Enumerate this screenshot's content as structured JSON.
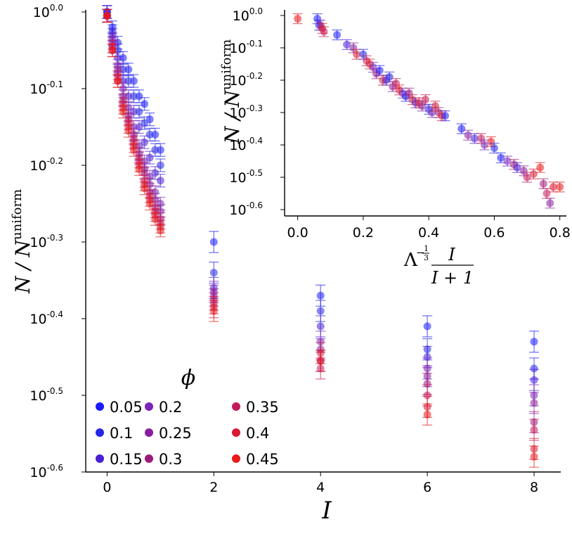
{
  "chart_data": [
    {
      "type": "scatter",
      "panel": "main",
      "xlabel": "I",
      "ylabel": "N / N^uniform",
      "ylabel_base": "N / N",
      "ylabel_sup": "uniform",
      "y_scale": "log10",
      "xlim": [
        -0.4,
        8.5
      ],
      "ylim_log10": [
        -0.6,
        0.0
      ],
      "x_ticks": [
        "0",
        "2",
        "4",
        "6",
        "8"
      ],
      "y_ticks": [
        {
          "base": "10",
          "exp": "0.0"
        },
        {
          "base": "10",
          "exp": "-0.1"
        },
        {
          "base": "10",
          "exp": "-0.2"
        },
        {
          "base": "10",
          "exp": "-0.3"
        },
        {
          "base": "10",
          "exp": "-0.4"
        },
        {
          "base": "10",
          "exp": "-0.5"
        },
        {
          "base": "10",
          "exp": "-0.6"
        }
      ],
      "error_bars": true,
      "x": [
        0,
        0.1,
        0.2,
        0.3,
        0.4,
        0.5,
        0.6,
        0.7,
        0.8,
        0.9,
        1.0,
        2,
        4,
        6,
        8
      ],
      "series": [
        {
          "name": "0.05",
          "color": "#1a1aff",
          "log10_values": [
            0.0,
            -0.02,
            -0.04,
            -0.06,
            -0.075,
            -0.09,
            -0.11,
            -0.12,
            -0.14,
            -0.16,
            -0.18,
            -0.3,
            -0.37,
            -0.41,
            -0.43
          ]
        },
        {
          "name": "0.1",
          "color": "#2626e6",
          "log10_values": [
            0.0,
            -0.025,
            -0.05,
            -0.075,
            -0.09,
            -0.11,
            -0.13,
            -0.145,
            -0.16,
            -0.18,
            -0.2,
            -0.34,
            -0.39,
            -0.44,
            -0.465
          ]
        },
        {
          "name": "0.15",
          "color": "#4a1fd6",
          "log10_values": [
            0.0,
            -0.03,
            -0.06,
            -0.09,
            -0.11,
            -0.13,
            -0.15,
            -0.17,
            -0.19,
            -0.21,
            -0.22,
            -0.36,
            -0.41,
            -0.45,
            -0.48
          ]
        },
        {
          "name": "0.2",
          "color": "#7a24b8",
          "log10_values": [
            -0.005,
            -0.035,
            -0.07,
            -0.1,
            -0.125,
            -0.15,
            -0.175,
            -0.195,
            -0.215,
            -0.235,
            -0.25,
            -0.365,
            -0.43,
            -0.465,
            -0.5
          ]
        },
        {
          "name": "0.25",
          "color": "#8a1f9e",
          "log10_values": [
            -0.005,
            -0.04,
            -0.075,
            -0.11,
            -0.135,
            -0.16,
            -0.185,
            -0.205,
            -0.225,
            -0.245,
            -0.26,
            -0.37,
            -0.44,
            -0.475,
            -0.51
          ]
        },
        {
          "name": "0.3",
          "color": "#9e1a7a",
          "log10_values": [
            -0.005,
            -0.045,
            -0.08,
            -0.115,
            -0.14,
            -0.165,
            -0.19,
            -0.21,
            -0.235,
            -0.255,
            -0.27,
            -0.375,
            -0.455,
            -0.485,
            -0.535
          ]
        },
        {
          "name": "0.35",
          "color": "#c41a5c",
          "log10_values": [
            -0.005,
            -0.045,
            -0.085,
            -0.12,
            -0.145,
            -0.17,
            -0.195,
            -0.22,
            -0.24,
            -0.26,
            -0.275,
            -0.38,
            -0.465,
            -0.5,
            -0.545
          ]
        },
        {
          "name": "0.4",
          "color": "#d61a33",
          "log10_values": [
            -0.005,
            -0.05,
            -0.09,
            -0.125,
            -0.15,
            -0.175,
            -0.2,
            -0.225,
            -0.245,
            -0.265,
            -0.28,
            -0.385,
            -0.445,
            -0.515,
            -0.57
          ]
        },
        {
          "name": "0.45",
          "color": "#e81a1a",
          "log10_values": [
            -0.005,
            -0.05,
            -0.09,
            -0.13,
            -0.155,
            -0.18,
            -0.205,
            -0.23,
            -0.25,
            -0.27,
            -0.285,
            -0.39,
            -0.455,
            -0.525,
            -0.58
          ]
        }
      ]
    },
    {
      "type": "scatter",
      "panel": "inset",
      "xlabel": "Λ^(−1/3) · I / (I+1)",
      "xlabel_lambda": "Λ",
      "xlabel_exp_sign": "−",
      "xlabel_exp_num": "1",
      "xlabel_exp_den": "3",
      "xlabel_frac_num": "I",
      "xlabel_frac_den": "I + 1",
      "ylabel": "N / N^uniform",
      "ylabel_base": "N / N",
      "ylabel_sup": "uniform",
      "y_scale": "log10",
      "xlim": [
        -0.04,
        0.82
      ],
      "ylim_log10": [
        -0.6,
        0.0
      ],
      "x_ticks": [
        "0.0",
        "0.2",
        "0.4",
        "0.6",
        "0.8"
      ],
      "y_ticks": [
        {
          "base": "10",
          "exp": "0.0"
        },
        {
          "base": "10",
          "exp": "-0.1"
        },
        {
          "base": "10",
          "exp": "-0.2"
        },
        {
          "base": "10",
          "exp": "-0.3"
        },
        {
          "base": "10",
          "exp": "-0.4"
        },
        {
          "base": "10",
          "exp": "-0.5"
        },
        {
          "base": "10",
          "exp": "-0.6"
        }
      ],
      "error_bars": true,
      "points": [
        {
          "x": 0.0,
          "y": -0.01,
          "s": 8
        },
        {
          "x": 0.06,
          "y": -0.01,
          "s": 0
        },
        {
          "x": 0.065,
          "y": -0.03,
          "s": 1
        },
        {
          "x": 0.07,
          "y": -0.03,
          "s": 3
        },
        {
          "x": 0.075,
          "y": -0.04,
          "s": 8
        },
        {
          "x": 0.08,
          "y": -0.05,
          "s": 6
        },
        {
          "x": 0.12,
          "y": -0.06,
          "s": 0
        },
        {
          "x": 0.15,
          "y": -0.09,
          "s": 2
        },
        {
          "x": 0.17,
          "y": -0.1,
          "s": 4
        },
        {
          "x": 0.18,
          "y": -0.12,
          "s": 7
        },
        {
          "x": 0.2,
          "y": -0.12,
          "s": 1
        },
        {
          "x": 0.21,
          "y": -0.14,
          "s": 6
        },
        {
          "x": 0.22,
          "y": -0.15,
          "s": 8
        },
        {
          "x": 0.23,
          "y": -0.16,
          "s": 3
        },
        {
          "x": 0.24,
          "y": -0.18,
          "s": 5
        },
        {
          "x": 0.25,
          "y": -0.17,
          "s": 0
        },
        {
          "x": 0.26,
          "y": -0.2,
          "s": 7
        },
        {
          "x": 0.27,
          "y": -0.2,
          "s": 2
        },
        {
          "x": 0.28,
          "y": -0.19,
          "s": 1
        },
        {
          "x": 0.29,
          "y": -0.22,
          "s": 4
        },
        {
          "x": 0.3,
          "y": -0.21,
          "s": 6
        },
        {
          "x": 0.31,
          "y": -0.23,
          "s": 8
        },
        {
          "x": 0.32,
          "y": -0.24,
          "s": 3
        },
        {
          "x": 0.33,
          "y": -0.25,
          "s": 0
        },
        {
          "x": 0.34,
          "y": -0.24,
          "s": 5
        },
        {
          "x": 0.35,
          "y": -0.26,
          "s": 7
        },
        {
          "x": 0.36,
          "y": -0.27,
          "s": 2
        },
        {
          "x": 0.37,
          "y": -0.27,
          "s": 8
        },
        {
          "x": 0.38,
          "y": -0.28,
          "s": 4
        },
        {
          "x": 0.39,
          "y": -0.26,
          "s": 6
        },
        {
          "x": 0.4,
          "y": -0.29,
          "s": 1
        },
        {
          "x": 0.41,
          "y": -0.3,
          "s": 3
        },
        {
          "x": 0.42,
          "y": -0.28,
          "s": 7
        },
        {
          "x": 0.43,
          "y": -0.3,
          "s": 5
        },
        {
          "x": 0.44,
          "y": -0.31,
          "s": 8
        },
        {
          "x": 0.45,
          "y": -0.31,
          "s": 0
        },
        {
          "x": 0.5,
          "y": -0.35,
          "s": 0
        },
        {
          "x": 0.52,
          "y": -0.37,
          "s": 4
        },
        {
          "x": 0.54,
          "y": -0.38,
          "s": 2
        },
        {
          "x": 0.56,
          "y": -0.38,
          "s": 6
        },
        {
          "x": 0.57,
          "y": -0.4,
          "s": 3
        },
        {
          "x": 0.59,
          "y": -0.39,
          "s": 8
        },
        {
          "x": 0.6,
          "y": -0.41,
          "s": 1
        },
        {
          "x": 0.62,
          "y": -0.44,
          "s": 0
        },
        {
          "x": 0.64,
          "y": -0.45,
          "s": 3
        },
        {
          "x": 0.66,
          "y": -0.46,
          "s": 5
        },
        {
          "x": 0.67,
          "y": -0.47,
          "s": 2
        },
        {
          "x": 0.69,
          "y": -0.48,
          "s": 4
        },
        {
          "x": 0.7,
          "y": -0.5,
          "s": 6
        },
        {
          "x": 0.72,
          "y": -0.49,
          "s": 7
        },
        {
          "x": 0.74,
          "y": -0.47,
          "s": 8
        },
        {
          "x": 0.75,
          "y": -0.52,
          "s": 5
        },
        {
          "x": 0.76,
          "y": -0.55,
          "s": 6
        },
        {
          "x": 0.77,
          "y": -0.58,
          "s": 4
        },
        {
          "x": 0.78,
          "y": -0.53,
          "s": 7
        },
        {
          "x": 0.8,
          "y": -0.53,
          "s": 8
        }
      ]
    }
  ],
  "legend": {
    "title": "ϕ",
    "placement": "bottom-left",
    "entries": [
      {
        "label": "0.05",
        "color": "#1a1aff"
      },
      {
        "label": "0.1",
        "color": "#2626e6"
      },
      {
        "label": "0.15",
        "color": "#4a1fd6"
      },
      {
        "label": "0.2",
        "color": "#7a24b8"
      },
      {
        "label": "0.25",
        "color": "#8a1f9e"
      },
      {
        "label": "0.3",
        "color": "#9e1a7a"
      },
      {
        "label": "0.35",
        "color": "#c41a5c"
      },
      {
        "label": "0.4",
        "color": "#d61a33"
      },
      {
        "label": "0.45",
        "color": "#e81a1a"
      }
    ]
  }
}
